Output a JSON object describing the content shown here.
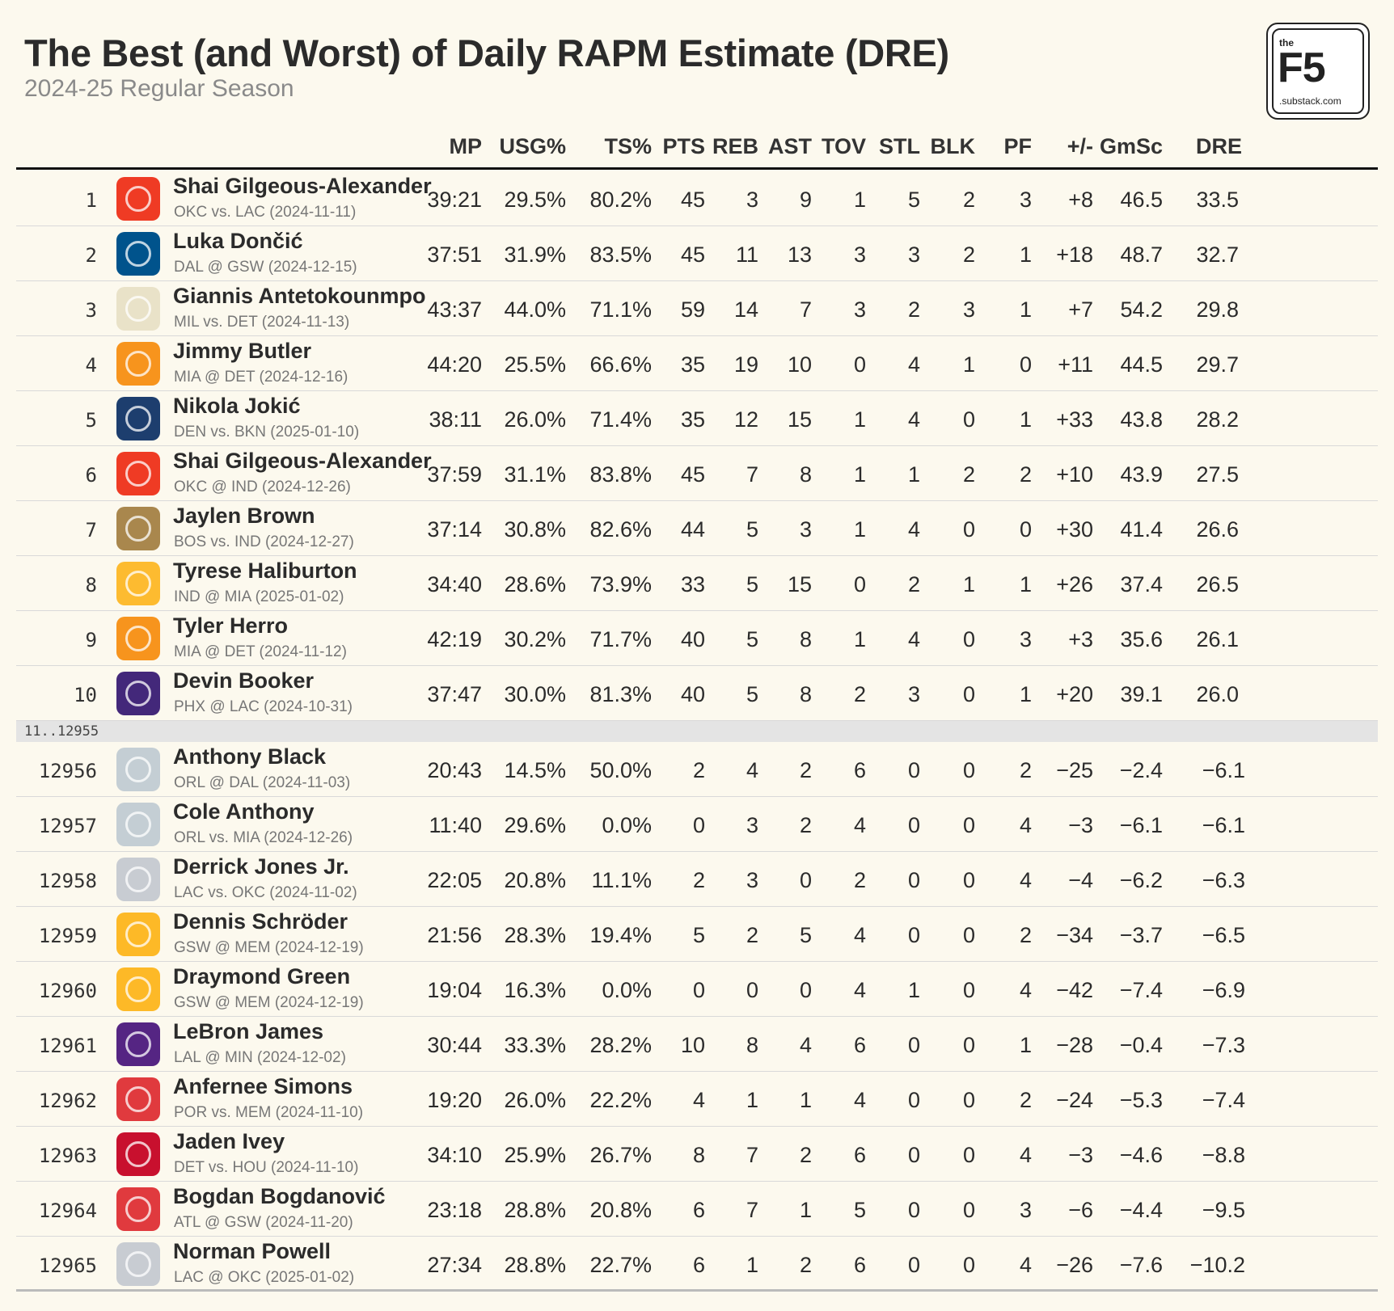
{
  "title": "The Best (and Worst) of Daily RAPM Estimate (DRE)",
  "subtitle": "2024-25 Regular Season",
  "logo": {
    "small": "the",
    "big": "F5",
    "domain": ".substack.com"
  },
  "columns": [
    "MP",
    "USG%",
    "TS%",
    "PTS",
    "REB",
    "AST",
    "TOV",
    "STL",
    "BLK",
    "PF",
    "+/-",
    "GmSc",
    "DRE"
  ],
  "separator": "11..12955",
  "team_colors": {
    "OKC": "#ef3b24",
    "DAL": "#00538c",
    "MIL": "#e9e2c8",
    "MIA": "#f7941d",
    "DEN": "#1d3e6e",
    "BOS": "#a9874d",
    "IND": "#fdbb30",
    "PHX": "#43287a",
    "ORL": "#c4ced4",
    "LAC": "#c8ccd2",
    "GSW": "#fdb927",
    "LAL": "#552583",
    "POR": "#e03a3e",
    "DET": "#c8102e",
    "ATL": "#e03a3e"
  },
  "top_rows": [
    {
      "rank": "1",
      "team": "OKC",
      "player": "Shai Gilgeous-Alexander",
      "game": "OKC vs. LAC (2024-11-11)",
      "stats": [
        "39:21",
        "29.5%",
        "80.2%",
        "45",
        "3",
        "9",
        "1",
        "5",
        "2",
        "3",
        "+8",
        "46.5",
        "33.5"
      ]
    },
    {
      "rank": "2",
      "team": "DAL",
      "player": "Luka Dončić",
      "game": "DAL @ GSW (2024-12-15)",
      "stats": [
        "37:51",
        "31.9%",
        "83.5%",
        "45",
        "11",
        "13",
        "3",
        "3",
        "2",
        "1",
        "+18",
        "48.7",
        "32.7"
      ]
    },
    {
      "rank": "3",
      "team": "MIL",
      "player": "Giannis Antetokounmpo",
      "game": "MIL vs. DET (2024-11-13)",
      "stats": [
        "43:37",
        "44.0%",
        "71.1%",
        "59",
        "14",
        "7",
        "3",
        "2",
        "3",
        "1",
        "+7",
        "54.2",
        "29.8"
      ]
    },
    {
      "rank": "4",
      "team": "MIA",
      "player": "Jimmy Butler",
      "game": "MIA @ DET (2024-12-16)",
      "stats": [
        "44:20",
        "25.5%",
        "66.6%",
        "35",
        "19",
        "10",
        "0",
        "4",
        "1",
        "0",
        "+11",
        "44.5",
        "29.7"
      ]
    },
    {
      "rank": "5",
      "team": "DEN",
      "player": "Nikola Jokić",
      "game": "DEN vs. BKN (2025-01-10)",
      "stats": [
        "38:11",
        "26.0%",
        "71.4%",
        "35",
        "12",
        "15",
        "1",
        "4",
        "0",
        "1",
        "+33",
        "43.8",
        "28.2"
      ]
    },
    {
      "rank": "6",
      "team": "OKC",
      "player": "Shai Gilgeous-Alexander",
      "game": "OKC @ IND (2024-12-26)",
      "stats": [
        "37:59",
        "31.1%",
        "83.8%",
        "45",
        "7",
        "8",
        "1",
        "1",
        "2",
        "2",
        "+10",
        "43.9",
        "27.5"
      ]
    },
    {
      "rank": "7",
      "team": "BOS",
      "player": "Jaylen Brown",
      "game": "BOS vs. IND (2024-12-27)",
      "stats": [
        "37:14",
        "30.8%",
        "82.6%",
        "44",
        "5",
        "3",
        "1",
        "4",
        "0",
        "0",
        "+30",
        "41.4",
        "26.6"
      ]
    },
    {
      "rank": "8",
      "team": "IND",
      "player": "Tyrese Haliburton",
      "game": "IND @ MIA (2025-01-02)",
      "stats": [
        "34:40",
        "28.6%",
        "73.9%",
        "33",
        "5",
        "15",
        "0",
        "2",
        "1",
        "1",
        "+26",
        "37.4",
        "26.5"
      ]
    },
    {
      "rank": "9",
      "team": "MIA",
      "player": "Tyler Herro",
      "game": "MIA @ DET (2024-11-12)",
      "stats": [
        "42:19",
        "30.2%",
        "71.7%",
        "40",
        "5",
        "8",
        "1",
        "4",
        "0",
        "3",
        "+3",
        "35.6",
        "26.1"
      ]
    },
    {
      "rank": "10",
      "team": "PHX",
      "player": "Devin Booker",
      "game": "PHX @ LAC (2024-10-31)",
      "stats": [
        "37:47",
        "30.0%",
        "81.3%",
        "40",
        "5",
        "8",
        "2",
        "3",
        "0",
        "1",
        "+20",
        "39.1",
        "26.0"
      ]
    }
  ],
  "bottom_rows": [
    {
      "rank": "12956",
      "team": "ORL",
      "player": "Anthony Black",
      "game": "ORL @ DAL (2024-11-03)",
      "stats": [
        "20:43",
        "14.5%",
        "50.0%",
        "2",
        "4",
        "2",
        "6",
        "0",
        "0",
        "2",
        "−25",
        "−2.4",
        "−6.1"
      ]
    },
    {
      "rank": "12957",
      "team": "ORL",
      "player": "Cole Anthony",
      "game": "ORL vs. MIA (2024-12-26)",
      "stats": [
        "11:40",
        "29.6%",
        "0.0%",
        "0",
        "3",
        "2",
        "4",
        "0",
        "0",
        "4",
        "−3",
        "−6.1",
        "−6.1"
      ]
    },
    {
      "rank": "12958",
      "team": "LAC",
      "player": "Derrick Jones Jr.",
      "game": "LAC vs. OKC (2024-11-02)",
      "stats": [
        "22:05",
        "20.8%",
        "11.1%",
        "2",
        "3",
        "0",
        "2",
        "0",
        "0",
        "4",
        "−4",
        "−6.2",
        "−6.3"
      ]
    },
    {
      "rank": "12959",
      "team": "GSW",
      "player": "Dennis Schröder",
      "game": "GSW @ MEM (2024-12-19)",
      "stats": [
        "21:56",
        "28.3%",
        "19.4%",
        "5",
        "2",
        "5",
        "4",
        "0",
        "0",
        "2",
        "−34",
        "−3.7",
        "−6.5"
      ]
    },
    {
      "rank": "12960",
      "team": "GSW",
      "player": "Draymond Green",
      "game": "GSW @ MEM (2024-12-19)",
      "stats": [
        "19:04",
        "16.3%",
        "0.0%",
        "0",
        "0",
        "0",
        "4",
        "1",
        "0",
        "4",
        "−42",
        "−7.4",
        "−6.9"
      ]
    },
    {
      "rank": "12961",
      "team": "LAL",
      "player": "LeBron James",
      "game": "LAL @ MIN (2024-12-02)",
      "stats": [
        "30:44",
        "33.3%",
        "28.2%",
        "10",
        "8",
        "4",
        "6",
        "0",
        "0",
        "1",
        "−28",
        "−0.4",
        "−7.3"
      ]
    },
    {
      "rank": "12962",
      "team": "POR",
      "player": "Anfernee Simons",
      "game": "POR vs. MEM (2024-11-10)",
      "stats": [
        "19:20",
        "26.0%",
        "22.2%",
        "4",
        "1",
        "1",
        "4",
        "0",
        "0",
        "2",
        "−24",
        "−5.3",
        "−7.4"
      ]
    },
    {
      "rank": "12963",
      "team": "DET",
      "player": "Jaden Ivey",
      "game": "DET vs. HOU (2024-11-10)",
      "stats": [
        "34:10",
        "25.9%",
        "26.7%",
        "8",
        "7",
        "2",
        "6",
        "0",
        "0",
        "4",
        "−3",
        "−4.6",
        "−8.8"
      ]
    },
    {
      "rank": "12964",
      "team": "ATL",
      "player": "Bogdan Bogdanović",
      "game": "ATL @ GSW (2024-11-20)",
      "stats": [
        "23:18",
        "28.8%",
        "20.8%",
        "6",
        "7",
        "1",
        "5",
        "0",
        "0",
        "3",
        "−6",
        "−4.4",
        "−9.5"
      ]
    },
    {
      "rank": "12965",
      "team": "LAC",
      "player": "Norman Powell",
      "game": "LAC @ OKC (2025-01-02)",
      "stats": [
        "27:34",
        "28.8%",
        "22.7%",
        "6",
        "1",
        "2",
        "6",
        "0",
        "0",
        "4",
        "−26",
        "−7.6",
        "−10.2"
      ]
    }
  ]
}
